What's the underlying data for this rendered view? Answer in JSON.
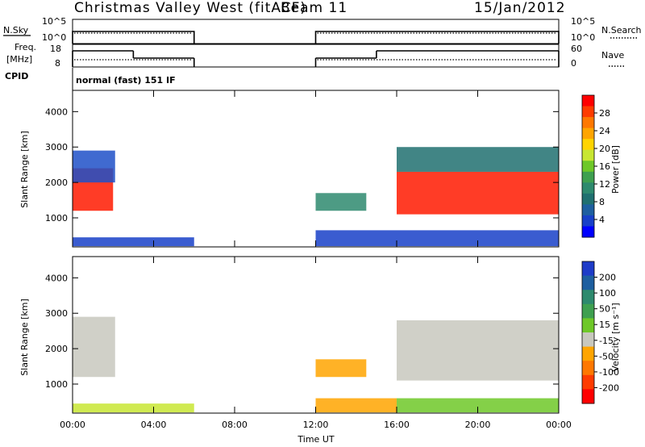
{
  "header": {
    "title": "Christmas Valley West (fitACF)",
    "beam": "Beam 11",
    "date": "15/Jan/2012"
  },
  "nsky_panel": {
    "label": "N.Sky",
    "right_label": "N.Search",
    "left_ticks": [
      "10^5",
      "10^0"
    ],
    "right_ticks": [
      "10^5",
      "10^0"
    ],
    "segments": [
      [
        0,
        6
      ],
      [
        12,
        24
      ]
    ]
  },
  "freq_panel": {
    "label_line1": "Freq.",
    "label_line2": "[MHz]",
    "right_label": "Nave",
    "left_ticks": [
      "18",
      "8"
    ],
    "right_ticks": [
      "60",
      "0"
    ],
    "freq_steps": [
      [
        0,
        3,
        "high"
      ],
      [
        3,
        6,
        "low"
      ],
      [
        12,
        15,
        "low"
      ],
      [
        15,
        24,
        "high"
      ]
    ]
  },
  "cpid": {
    "label": "CPID",
    "mode": "normal (fast) 151 IF"
  },
  "chart_data": [
    {
      "type": "heatmap",
      "title": "",
      "ylabel": "Slant Range [km]",
      "xlabel": "",
      "y_ticks": [
        1000,
        2000,
        3000,
        4000
      ],
      "ylim": [
        180,
        4600
      ],
      "xlim": [
        0,
        24
      ],
      "colorbar_label": "Power [dB]",
      "colorbar_ticks": [
        "28",
        "24",
        "20",
        "16",
        "12",
        "8",
        "4"
      ],
      "colorbar_colors": [
        "#ff0000",
        "#ff3c00",
        "#ff7800",
        "#ffa500",
        "#ffd400",
        "#c8e632",
        "#6ec828",
        "#3fa050",
        "#2e8a6e",
        "#207070",
        "#1e5fa0",
        "#1840c8",
        "#0000ff"
      ],
      "regions": [
        {
          "t": [
            0.0,
            2.0
          ],
          "r": [
            1200,
            2400
          ],
          "color": "#ff1a00"
        },
        {
          "t": [
            0.0,
            2.1
          ],
          "r": [
            2000,
            2900
          ],
          "color": "#1e50c8"
        },
        {
          "t": [
            12.0,
            14.5
          ],
          "r": [
            1200,
            1700
          ],
          "color": "#2e8a6e"
        },
        {
          "t": [
            16.0,
            24.0
          ],
          "r": [
            1100,
            2300
          ],
          "color": "#ff1a00"
        },
        {
          "t": [
            16.0,
            24.0
          ],
          "r": [
            2300,
            3000
          ],
          "color": "#207070"
        },
        {
          "t": [
            0.0,
            6.0
          ],
          "r": [
            200,
            450
          ],
          "color": "#1840c8"
        },
        {
          "t": [
            12.0,
            24.0
          ],
          "r": [
            200,
            650
          ],
          "color": "#1840c8"
        }
      ]
    },
    {
      "type": "heatmap",
      "title": "",
      "ylabel": "Slant Range [km]",
      "xlabel": "Time UT",
      "y_ticks": [
        1000,
        2000,
        3000,
        4000
      ],
      "ylim": [
        180,
        4600
      ],
      "xlim": [
        0,
        24
      ],
      "x_ticks": [
        "00:00",
        "04:00",
        "08:00",
        "12:00",
        "16:00",
        "20:00",
        "00:00"
      ],
      "colorbar_label": "Velocity [m s⁻¹]",
      "colorbar_ticks": [
        "200",
        "100",
        "50",
        "15",
        "-15",
        "-50",
        "-100",
        "-200"
      ],
      "colorbar_colors": [
        "#1e3cc8",
        "#1e5fa0",
        "#2e8a6e",
        "#3fa050",
        "#6ec828",
        "#c8c8be",
        "#ffa500",
        "#ff7800",
        "#ff3c00",
        "#ff0000"
      ],
      "regions": [
        {
          "t": [
            0.0,
            2.1
          ],
          "r": [
            1200,
            2900
          ],
          "color": "#c8c8be"
        },
        {
          "t": [
            12.0,
            14.5
          ],
          "r": [
            1200,
            1700
          ],
          "color": "#ffa500"
        },
        {
          "t": [
            16.0,
            24.0
          ],
          "r": [
            1100,
            2800
          ],
          "color": "#c8c8be"
        },
        {
          "t": [
            0.0,
            6.0
          ],
          "r": [
            200,
            450
          ],
          "color": "#c8e632"
        },
        {
          "t": [
            12.0,
            16.0
          ],
          "r": [
            200,
            600
          ],
          "color": "#ffa500"
        },
        {
          "t": [
            16.0,
            24.0
          ],
          "r": [
            200,
            600
          ],
          "color": "#6ec828"
        }
      ]
    }
  ]
}
